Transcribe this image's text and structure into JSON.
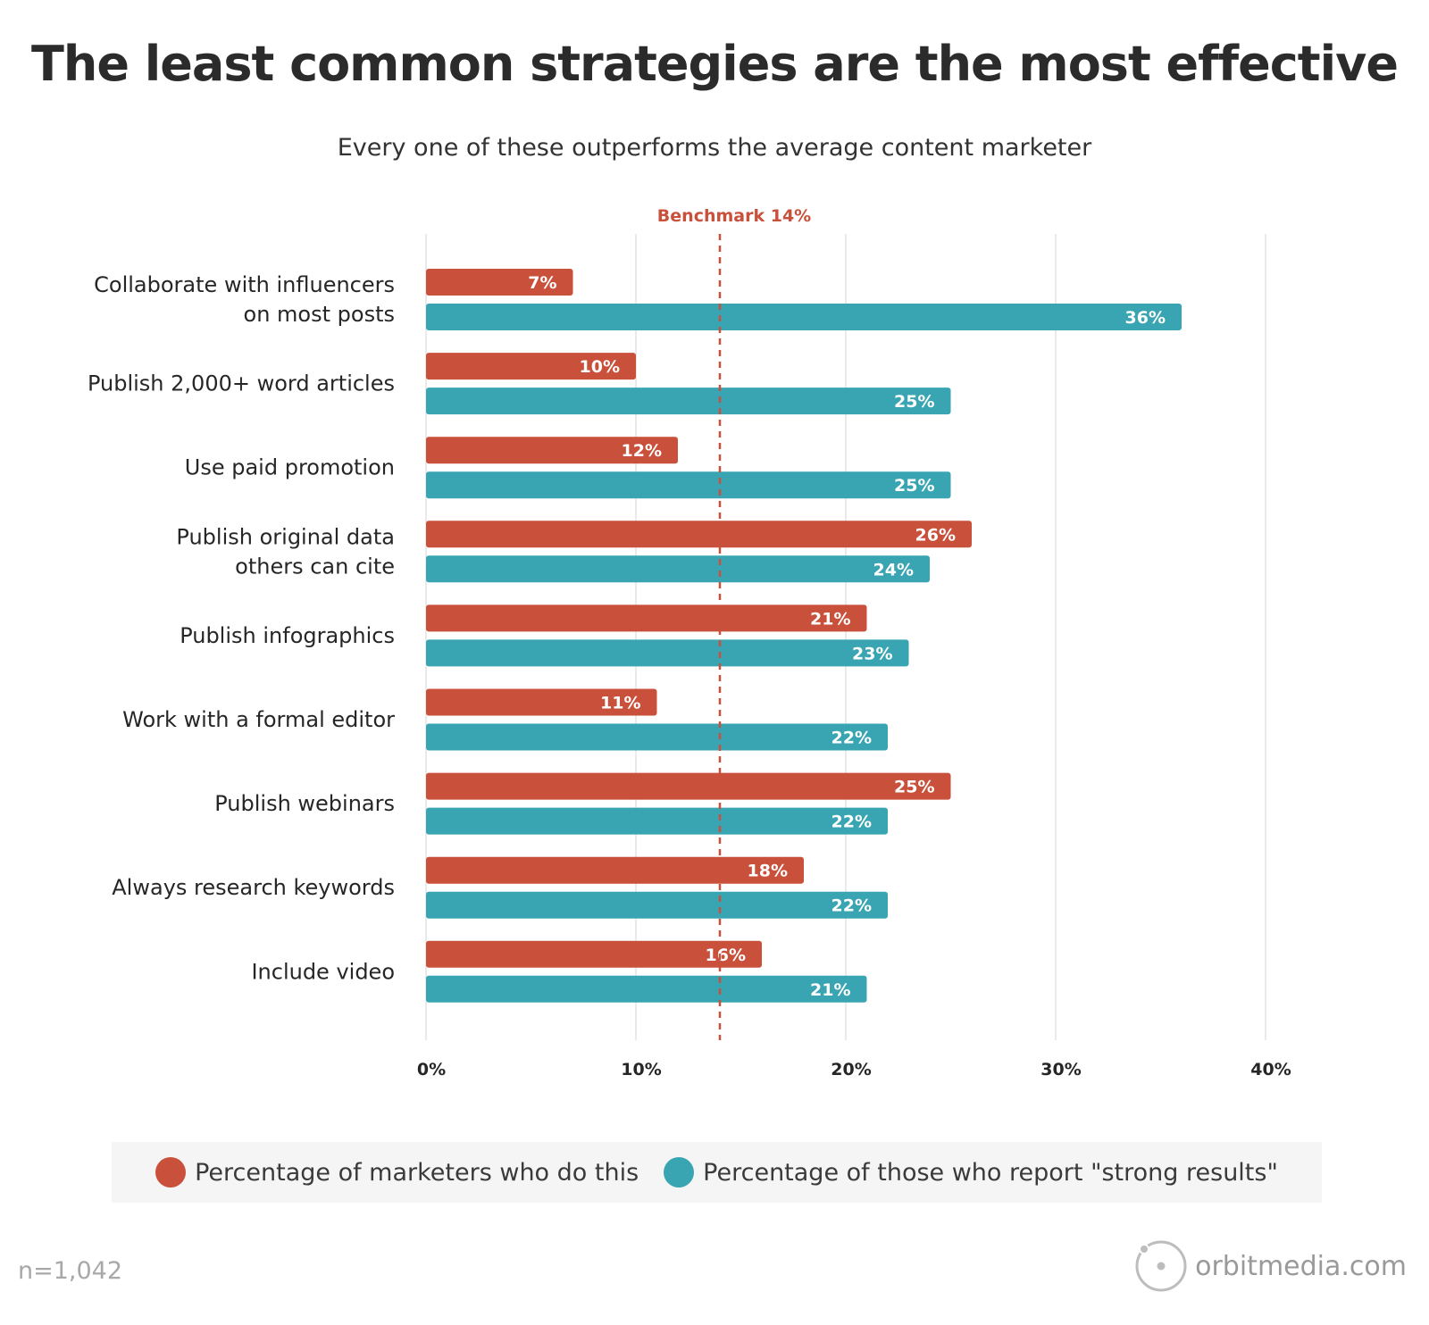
{
  "title": "The least common strategies are the most effective",
  "subtitle": "Every one of these outperforms the average content marketer",
  "colors": {
    "do_this": "#c9503a",
    "strong_results": "#39a5b2",
    "benchmark": "#c9503a",
    "grid": "#e3e3e3"
  },
  "chart_data": {
    "type": "bar",
    "orientation": "horizontal",
    "title": "The least common strategies are the most effective",
    "subtitle": "Every one of these outperforms the average content marketer",
    "categories": [
      [
        "Collaborate with influencers",
        "on most posts"
      ],
      [
        "Publish 2,000+ word articles"
      ],
      [
        "Use paid promotion"
      ],
      [
        "Publish original data",
        "others can cite"
      ],
      [
        "Publish infographics"
      ],
      [
        "Work with a formal editor"
      ],
      [
        "Publish webinars"
      ],
      [
        "Always research keywords"
      ],
      [
        "Include video"
      ]
    ],
    "series": [
      {
        "name": "Percentage of marketers who do this",
        "values": [
          7,
          10,
          12,
          26,
          21,
          11,
          25,
          18,
          16
        ]
      },
      {
        "name": "Percentage of those who report \"strong results\"",
        "values": [
          36,
          25,
          25,
          24,
          23,
          22,
          22,
          22,
          21
        ]
      }
    ],
    "xlim": [
      0,
      40
    ],
    "xticks": [
      0,
      10,
      20,
      30,
      40
    ],
    "tick_labels": [
      "0%",
      "10%",
      "20%",
      "30%",
      "40%"
    ],
    "value_suffix": "%",
    "benchmark": {
      "value": 14,
      "label": "Benchmark 14%"
    },
    "grid": true,
    "legend_position": "bottom"
  },
  "legend": {
    "items": [
      "Percentage of marketers who do this",
      "Percentage of those who report \"strong results\""
    ]
  },
  "footer": {
    "sample_size": "n=1,042",
    "brand": "orbitmedia.com"
  }
}
